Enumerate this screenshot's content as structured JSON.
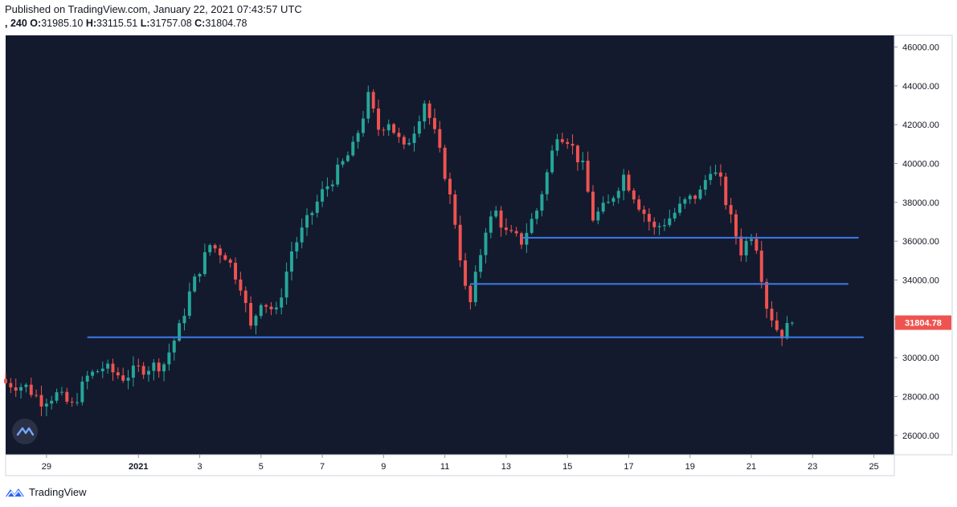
{
  "header": {
    "published": "Published on TradingView.com, January 22, 2021 07:43:57 UTC",
    "symbol_interval": ", 240",
    "o_label": "O:",
    "o_value": "31985.10",
    "h_label": "H:",
    "h_value": "33115.51",
    "l_label": "L:",
    "l_value": "31757.08",
    "c_label": "C:",
    "c_value": "31804.78"
  },
  "footer": {
    "brand": "TradingView"
  },
  "colors": {
    "background": "#131a2e",
    "up": "#26a69a",
    "down": "#ef5350",
    "level_line": "#3d7be8",
    "price_tag": "#ef5350",
    "axis_text": "#131722"
  },
  "chart_data": {
    "type": "candlestick",
    "interval": "240",
    "y_range": [
      25000,
      46600
    ],
    "x_range": [
      "2020-12-27 16:00",
      "2021-01-25 16:00"
    ],
    "y_ticks": [
      "26000.00",
      "28000.00",
      "30000.00",
      "32000.00",
      "34000.00",
      "36000.00",
      "38000.00",
      "40000.00",
      "42000.00",
      "44000.00",
      "46000.00"
    ],
    "x_ticks": [
      {
        "label": "29",
        "date": "2020-12-29"
      },
      {
        "label": "2021",
        "date": "2021-01-01",
        "bold": true
      },
      {
        "label": "3",
        "date": "2021-01-03"
      },
      {
        "label": "5",
        "date": "2021-01-05"
      },
      {
        "label": "7",
        "date": "2021-01-07"
      },
      {
        "label": "9",
        "date": "2021-01-09"
      },
      {
        "label": "11",
        "date": "2021-01-11"
      },
      {
        "label": "13",
        "date": "2021-01-13"
      },
      {
        "label": "15",
        "date": "2021-01-15"
      },
      {
        "label": "17",
        "date": "2021-01-17"
      },
      {
        "label": "19",
        "date": "2021-01-19"
      },
      {
        "label": "21",
        "date": "2021-01-21"
      },
      {
        "label": "23",
        "date": "2021-01-23"
      },
      {
        "label": "25",
        "date": "2021-01-25"
      }
    ],
    "last_price": {
      "value": 31804.78,
      "label": "31804.78"
    },
    "levels": [
      {
        "price": 36180,
        "from": "2021-01-13 12:00",
        "to": "2021-01-24 12:00"
      },
      {
        "price": 33800,
        "from": "2021-01-11 20:00",
        "to": "2021-01-24 04:00"
      },
      {
        "price": 31050,
        "from": "2020-12-30 08:00",
        "to": "2021-01-24 16:00"
      }
    ],
    "close_path": [
      [
        "2020-12-27 16:00",
        28700
      ],
      [
        "2020-12-28 08:00",
        28500
      ],
      [
        "2020-12-28 20:00",
        27800
      ],
      [
        "2020-12-29 08:00",
        28100
      ],
      [
        "2020-12-29 20:00",
        27500
      ],
      [
        "2020-12-30 08:00",
        29000
      ],
      [
        "2020-12-30 20:00",
        29500
      ],
      [
        "2020-12-31 12:00",
        29000
      ],
      [
        "2021-01-01 00:00",
        29400
      ],
      [
        "2021-01-01 20:00",
        29700
      ],
      [
        "2021-01-02 08:00",
        31500
      ],
      [
        "2021-01-02 16:00",
        33300
      ],
      [
        "2021-01-03 00:00",
        34600
      ],
      [
        "2021-01-03 08:00",
        35800
      ],
      [
        "2021-01-03 20:00",
        35300
      ],
      [
        "2021-01-04 08:00",
        33800
      ],
      [
        "2021-01-04 16:00",
        31500
      ],
      [
        "2021-01-05 00:00",
        33000
      ],
      [
        "2021-01-05 12:00",
        32300
      ],
      [
        "2021-01-06 00:00",
        35500
      ],
      [
        "2021-01-06 12:00",
        37000
      ],
      [
        "2021-01-07 00:00",
        38500
      ],
      [
        "2021-01-07 12:00",
        39600
      ],
      [
        "2021-01-08 00:00",
        40800
      ],
      [
        "2021-01-08 08:00",
        42500
      ],
      [
        "2021-01-08 12:00",
        43400
      ],
      [
        "2021-01-08 20:00",
        41800
      ],
      [
        "2021-01-09 04:00",
        42200
      ],
      [
        "2021-01-09 16:00",
        40700
      ],
      [
        "2021-01-10 00:00",
        41800
      ],
      [
        "2021-01-10 08:00",
        43200
      ],
      [
        "2021-01-10 16:00",
        41500
      ],
      [
        "2021-01-11 00:00",
        39500
      ],
      [
        "2021-01-11 08:00",
        37000
      ],
      [
        "2021-01-11 16:00",
        33500
      ],
      [
        "2021-01-11 20:00",
        32800
      ],
      [
        "2021-01-12 08:00",
        36700
      ],
      [
        "2021-01-12 16:00",
        37500
      ],
      [
        "2021-01-13 00:00",
        36400
      ],
      [
        "2021-01-13 12:00",
        36000
      ],
      [
        "2021-01-14 00:00",
        37600
      ],
      [
        "2021-01-14 08:00",
        39500
      ],
      [
        "2021-01-14 16:00",
        41600
      ],
      [
        "2021-01-15 00:00",
        41300
      ],
      [
        "2021-01-15 12:00",
        39800
      ],
      [
        "2021-01-15 20:00",
        37200
      ],
      [
        "2021-01-16 08:00",
        37900
      ],
      [
        "2021-01-16 20:00",
        39400
      ],
      [
        "2021-01-17 08:00",
        37900
      ],
      [
        "2021-01-17 20:00",
        36600
      ],
      [
        "2021-01-18 08:00",
        37200
      ],
      [
        "2021-01-18 20:00",
        38000
      ],
      [
        "2021-01-19 08:00",
        38500
      ],
      [
        "2021-01-19 16:00",
        39800
      ],
      [
        "2021-01-20 00:00",
        39000
      ],
      [
        "2021-01-20 08:00",
        37100
      ],
      [
        "2021-01-20 16:00",
        35500
      ],
      [
        "2021-01-21 00:00",
        36400
      ],
      [
        "2021-01-21 04:00",
        35800
      ],
      [
        "2021-01-21 12:00",
        32700
      ],
      [
        "2021-01-21 20:00",
        31500
      ],
      [
        "2021-01-22 00:00",
        31250
      ],
      [
        "2021-01-22 08:00",
        31804.78
      ]
    ]
  }
}
